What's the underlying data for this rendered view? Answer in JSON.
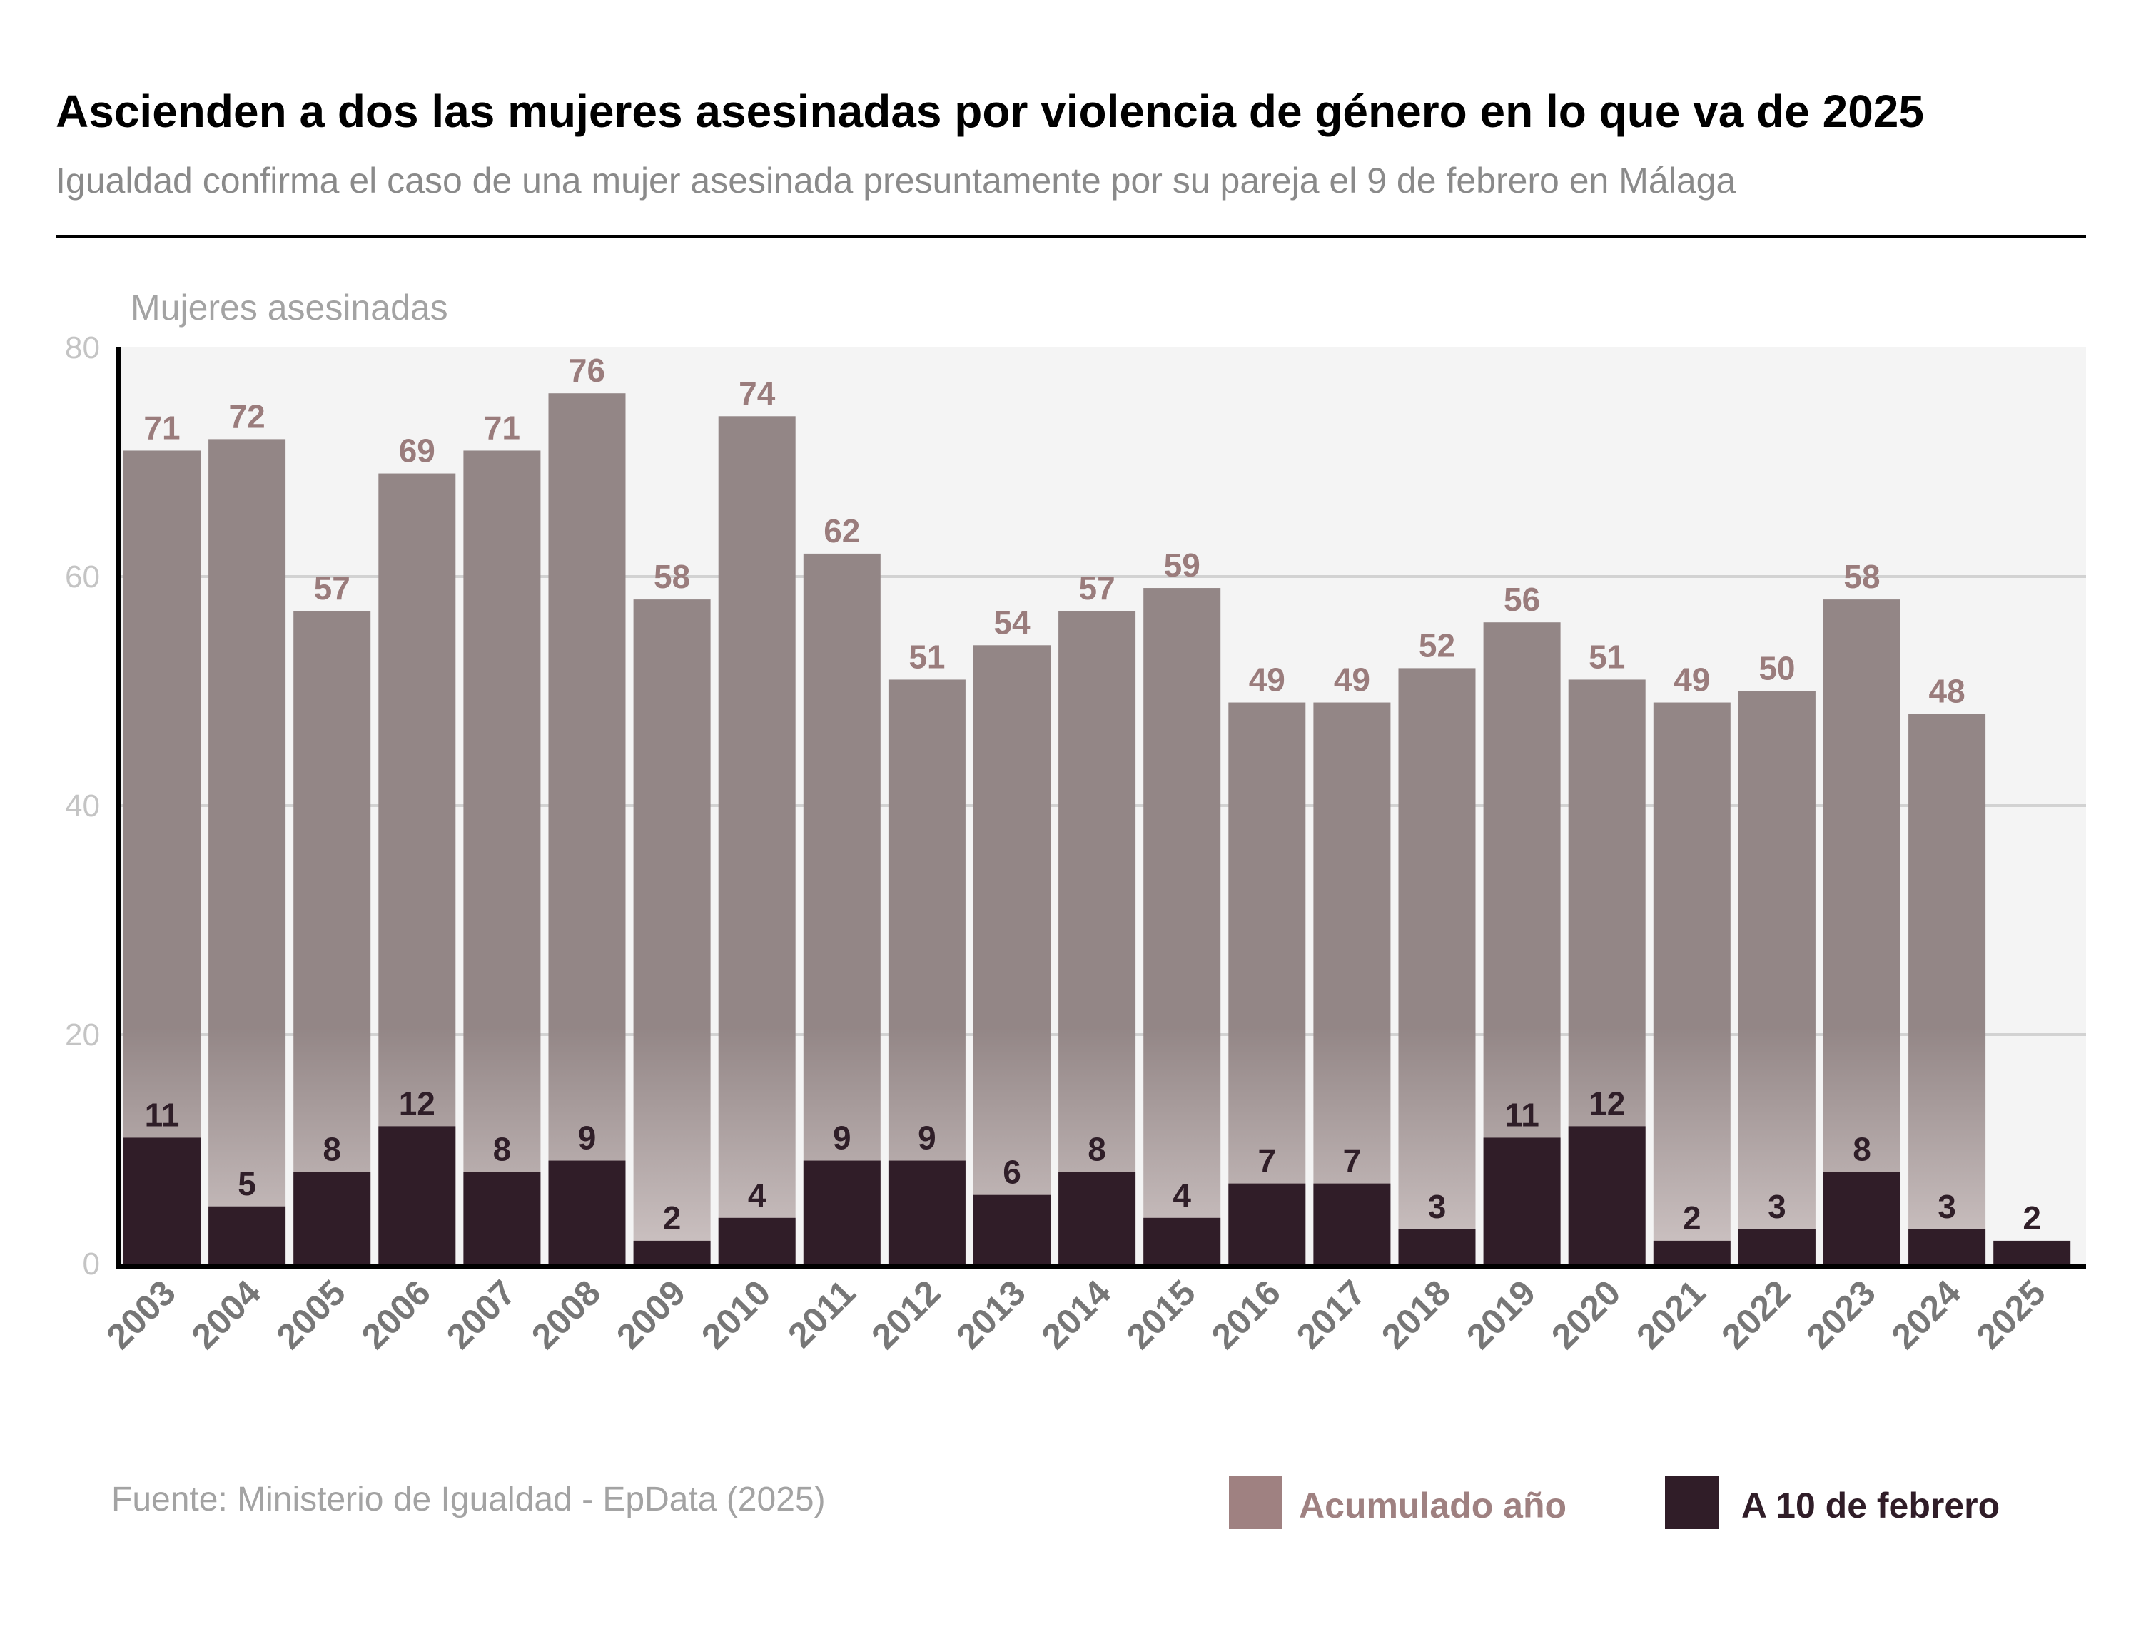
{
  "header": {
    "title": "Ascienden a dos las mujeres asesinadas por violencia de género en lo que va de 2025",
    "subtitle": "Igualdad confirma el caso de una mujer  asesinada presuntamente por su pareja el 9 de febrero en Málaga"
  },
  "footer": {
    "source": "Fuente: Ministerio de Igualdad - EpData (2025)"
  },
  "chart_data": {
    "type": "bar",
    "mode": "overlapping",
    "ylabel": "Mujeres asesinadas",
    "ylim": [
      0,
      80
    ],
    "yticks": [
      "0",
      "20",
      "40",
      "60",
      "80"
    ],
    "grid": true,
    "legend_position": "bottom-right",
    "categories": [
      "2003",
      "2004",
      "2005",
      "2006",
      "2007",
      "2008",
      "2009",
      "2010",
      "2011",
      "2012",
      "2013",
      "2014",
      "2015",
      "2016",
      "2017",
      "2018",
      "2019",
      "2020",
      "2021",
      "2022",
      "2023",
      "2024",
      "2025"
    ],
    "series": [
      {
        "name": "Acumulado año",
        "color": "#938686",
        "legend_color": "#9f8181",
        "values": [
          71,
          72,
          57,
          69,
          71,
          76,
          58,
          74,
          62,
          51,
          54,
          57,
          59,
          49,
          49,
          52,
          56,
          51,
          49,
          50,
          58,
          48,
          null
        ]
      },
      {
        "name": "A 10 de febrero",
        "color": "#301d28",
        "values": [
          11,
          5,
          8,
          12,
          8,
          9,
          2,
          4,
          9,
          9,
          6,
          8,
          4,
          7,
          7,
          3,
          11,
          12,
          2,
          3,
          8,
          3,
          2
        ]
      }
    ]
  }
}
